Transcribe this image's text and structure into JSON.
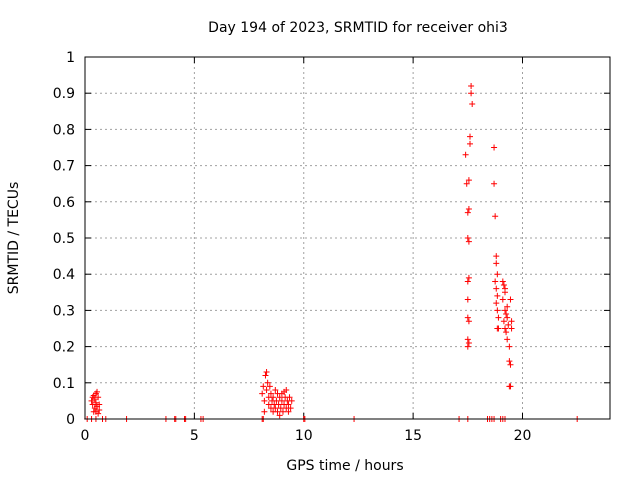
{
  "chart_data": {
    "type": "scatter",
    "title": "Day 194 of 2023, SRMTID for receiver ohi3",
    "xlabel": "GPS time / hours",
    "ylabel": "SRMTID / TECUs",
    "xlim": [
      0,
      24
    ],
    "ylim": [
      0,
      1
    ],
    "xticks": [
      0,
      5,
      10,
      15,
      20
    ],
    "yticks": [
      0,
      0.1,
      0.2,
      0.3,
      0.4,
      0.5,
      0.6,
      0.7,
      0.8,
      0.9,
      1
    ],
    "xtick_labels": [
      "0",
      "5",
      "10",
      "15",
      "20"
    ],
    "ytick_labels": [
      "0",
      "0.1",
      "0.2",
      "0.3",
      "0.4",
      "0.5",
      "0.6",
      "0.7",
      "0.8",
      "0.9",
      "1"
    ],
    "grid": true,
    "marker": "+",
    "color": "#ff0000",
    "series": [
      {
        "name": "SRMTID",
        "points": [
          [
            0.1,
            0
          ],
          [
            0.3,
            0
          ],
          [
            0.5,
            0
          ],
          [
            0.8,
            0
          ],
          [
            0.95,
            0
          ],
          [
            1.9,
            0
          ],
          [
            3.7,
            0
          ],
          [
            4.1,
            0
          ],
          [
            4.15,
            0
          ],
          [
            4.55,
            0
          ],
          [
            4.6,
            0
          ],
          [
            5.3,
            0
          ],
          [
            5.4,
            0
          ],
          [
            8.1,
            0
          ],
          [
            8.15,
            0
          ],
          [
            10,
            0
          ],
          [
            10.05,
            0
          ],
          [
            12.3,
            0
          ],
          [
            17.1,
            0
          ],
          [
            17.5,
            0
          ],
          [
            18.4,
            0
          ],
          [
            18.5,
            0
          ],
          [
            18.6,
            0
          ],
          [
            18.7,
            0
          ],
          [
            19.0,
            0
          ],
          [
            19.1,
            0
          ],
          [
            19.2,
            0
          ],
          [
            22.5,
            0
          ],
          [
            0.3,
            0.05
          ],
          [
            0.35,
            0.04
          ],
          [
            0.4,
            0.065
          ],
          [
            0.45,
            0.03
          ],
          [
            0.45,
            0.055
          ],
          [
            0.5,
            0.02
          ],
          [
            0.5,
            0.045
          ],
          [
            0.55,
            0.075
          ],
          [
            0.55,
            0.035
          ],
          [
            0.6,
            0.06
          ],
          [
            0.6,
            0.015
          ],
          [
            0.65,
            0.04
          ],
          [
            0.65,
            0.025
          ],
          [
            0.4,
            0.02
          ],
          [
            0.35,
            0.06
          ],
          [
            0.5,
            0.07
          ],
          [
            8.1,
            0.07
          ],
          [
            8.15,
            0.09
          ],
          [
            8.2,
            0.05
          ],
          [
            8.25,
            0.12
          ],
          [
            8.3,
            0.13
          ],
          [
            8.3,
            0.08
          ],
          [
            8.35,
            0.1
          ],
          [
            8.4,
            0.06
          ],
          [
            8.4,
            0.04
          ],
          [
            8.45,
            0.09
          ],
          [
            8.5,
            0.03
          ],
          [
            8.5,
            0.07
          ],
          [
            8.55,
            0.05
          ],
          [
            8.6,
            0.02
          ],
          [
            8.6,
            0.06
          ],
          [
            8.65,
            0.04
          ],
          [
            8.7,
            0.08
          ],
          [
            8.7,
            0.03
          ],
          [
            8.75,
            0.05
          ],
          [
            8.8,
            0.07
          ],
          [
            8.8,
            0.02
          ],
          [
            8.85,
            0.04
          ],
          [
            8.9,
            0.06
          ],
          [
            8.95,
            0.03
          ],
          [
            9.0,
            0.05
          ],
          [
            9.0,
            0.07
          ],
          [
            9.05,
            0.02
          ],
          [
            9.1,
            0.04
          ],
          [
            9.15,
            0.06
          ],
          [
            9.2,
            0.03
          ],
          [
            9.2,
            0.08
          ],
          [
            9.25,
            0.05
          ],
          [
            9.3,
            0.02
          ],
          [
            9.3,
            0.04
          ],
          [
            9.35,
            0.06
          ],
          [
            9.4,
            0.03
          ],
          [
            9.45,
            0.05
          ],
          [
            8.2,
            0.02
          ],
          [
            8.9,
            0.01
          ],
          [
            9.1,
            0.075
          ],
          [
            17.4,
            0.73
          ],
          [
            17.45,
            0.65
          ],
          [
            17.5,
            0.57
          ],
          [
            17.55,
            0.58
          ],
          [
            17.5,
            0.5
          ],
          [
            17.55,
            0.49
          ],
          [
            17.5,
            0.38
          ],
          [
            17.55,
            0.39
          ],
          [
            17.5,
            0.33
          ],
          [
            17.5,
            0.28
          ],
          [
            17.55,
            0.27
          ],
          [
            17.5,
            0.22
          ],
          [
            17.55,
            0.21
          ],
          [
            17.5,
            0.2
          ],
          [
            17.55,
            0.66
          ],
          [
            17.6,
            0.78
          ],
          [
            17.6,
            0.76
          ],
          [
            17.65,
            0.92
          ],
          [
            17.65,
            0.9
          ],
          [
            17.7,
            0.87
          ],
          [
            18.7,
            0.75
          ],
          [
            18.7,
            0.65
          ],
          [
            18.75,
            0.56
          ],
          [
            18.8,
            0.45
          ],
          [
            18.8,
            0.43
          ],
          [
            18.85,
            0.4
          ],
          [
            18.75,
            0.38
          ],
          [
            18.8,
            0.36
          ],
          [
            18.85,
            0.34
          ],
          [
            18.8,
            0.32
          ],
          [
            18.85,
            0.3
          ],
          [
            18.9,
            0.28
          ],
          [
            18.85,
            0.25
          ],
          [
            18.9,
            0.25
          ],
          [
            19.1,
            0.38
          ],
          [
            19.15,
            0.37
          ],
          [
            19.2,
            0.35
          ],
          [
            19.1,
            0.33
          ],
          [
            19.2,
            0.3
          ],
          [
            19.25,
            0.29
          ],
          [
            19.15,
            0.27
          ],
          [
            19.2,
            0.25
          ],
          [
            19.25,
            0.24
          ],
          [
            19.3,
            0.22
          ],
          [
            19.3,
            0.28
          ],
          [
            19.35,
            0.26
          ],
          [
            19.4,
            0.2
          ],
          [
            19.45,
            0.33
          ],
          [
            19.4,
            0.16
          ],
          [
            19.45,
            0.15
          ],
          [
            19.4,
            0.09
          ],
          [
            19.45,
            0.09
          ],
          [
            19.5,
            0.27
          ],
          [
            19.5,
            0.25
          ],
          [
            19.3,
            0.31
          ],
          [
            19.2,
            0.36
          ]
        ]
      }
    ]
  }
}
